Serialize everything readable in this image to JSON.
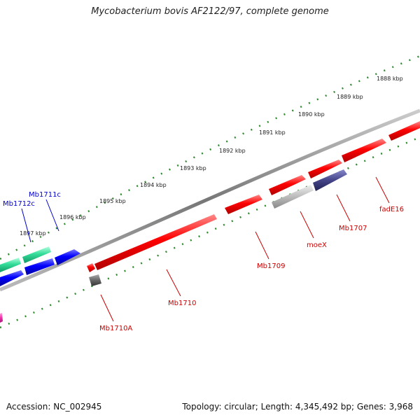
{
  "title": "Mycobacterium bovis AF2122/97, complete genome",
  "footer": {
    "accession": "Accession: NC_002945",
    "summary": "Topology: circular; Length: 4,345,492 bp; Genes: 3,968"
  },
  "colors": {
    "backbone": "#8a8a8a",
    "ruler_dots": "#2e8b2e",
    "forward_gene": "#ff0000",
    "reverse_gene": "#0000ff",
    "teal_gene": "#33dd99",
    "grey_gene": "#bbbbbb",
    "dark_grey_gene": "#666666",
    "purple_gene": "#444488",
    "magenta_gene": "#ee33aa",
    "red_label": "#cc0000",
    "blue_label": "#0000cc"
  },
  "ruler": {
    "labels": [
      "1888 kbp",
      "1889 kbp",
      "1890 kbp",
      "1891 kbp",
      "1892 kbp",
      "1893 kbp",
      "1894 kbp",
      "1895 kbp",
      "1896 kbp",
      "1897 kbp"
    ]
  },
  "genes": {
    "labeled": [
      "fadE16",
      "Mb1707",
      "moeX",
      "Mb1709",
      "Mb1710",
      "Mb1710A",
      "Mb1711c",
      "Mb1712c"
    ]
  }
}
